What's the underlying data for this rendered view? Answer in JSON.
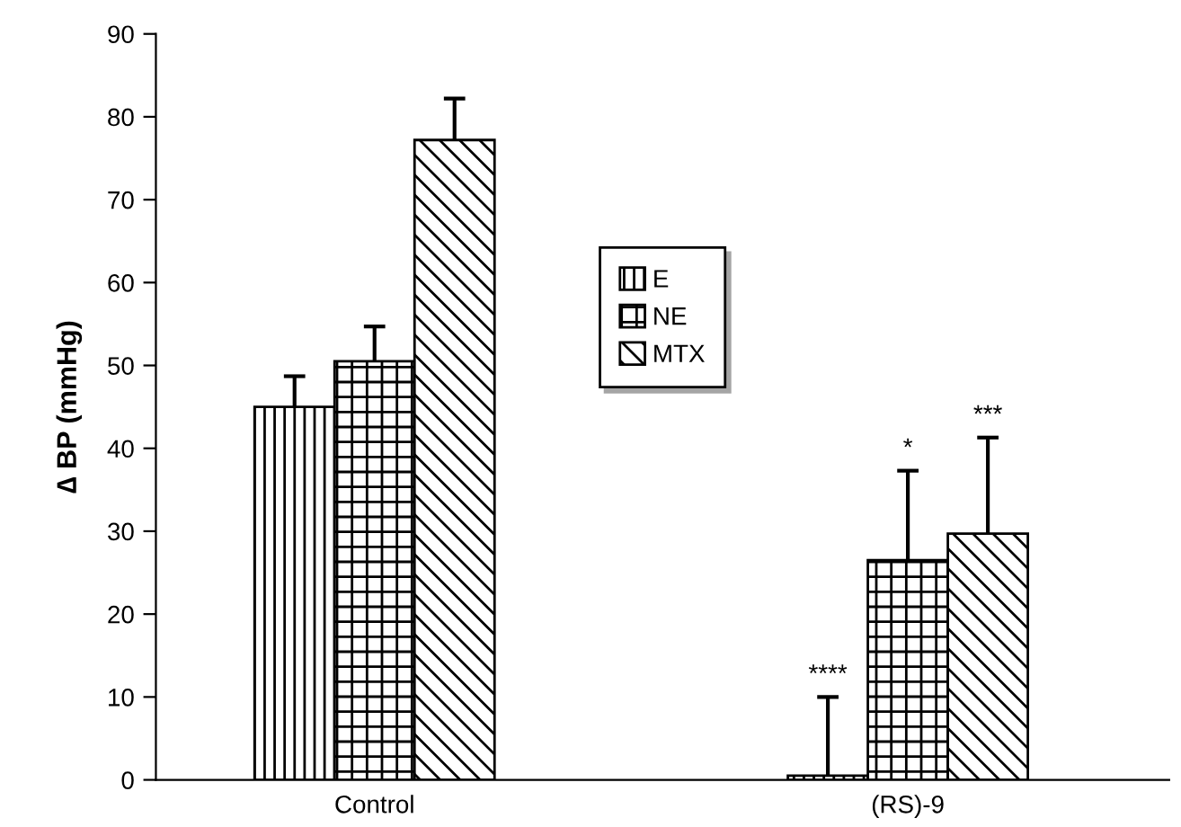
{
  "chart_data": {
    "type": "bar",
    "ylabel": "∆ BP (mmHg)",
    "categories": [
      "Control",
      "(RS)-9"
    ],
    "series": [
      {
        "name": "E",
        "color": "#000000",
        "values": [
          45,
          0.5
        ],
        "errors": [
          [
            45,
            48.7
          ],
          [
            0.5,
            10
          ]
        ]
      },
      {
        "name": "NE",
        "color": "#000000",
        "values": [
          50.5,
          26.5
        ],
        "errors": [
          [
            50.5,
            54.7
          ],
          [
            26.5,
            37.3
          ]
        ]
      },
      {
        "name": "MTX",
        "color": "#000000",
        "values": [
          77.2,
          29.7
        ],
        "errors": [
          [
            77.2,
            82.2
          ],
          [
            29.7,
            41.3
          ]
        ]
      }
    ],
    "annotations": [
      "****",
      "*",
      "***"
    ],
    "ylim": [
      0,
      90
    ],
    "yticks": [
      0,
      10,
      20,
      30,
      40,
      50,
      60,
      70,
      80,
      90
    ],
    "grid": false,
    "legend": "center"
  }
}
